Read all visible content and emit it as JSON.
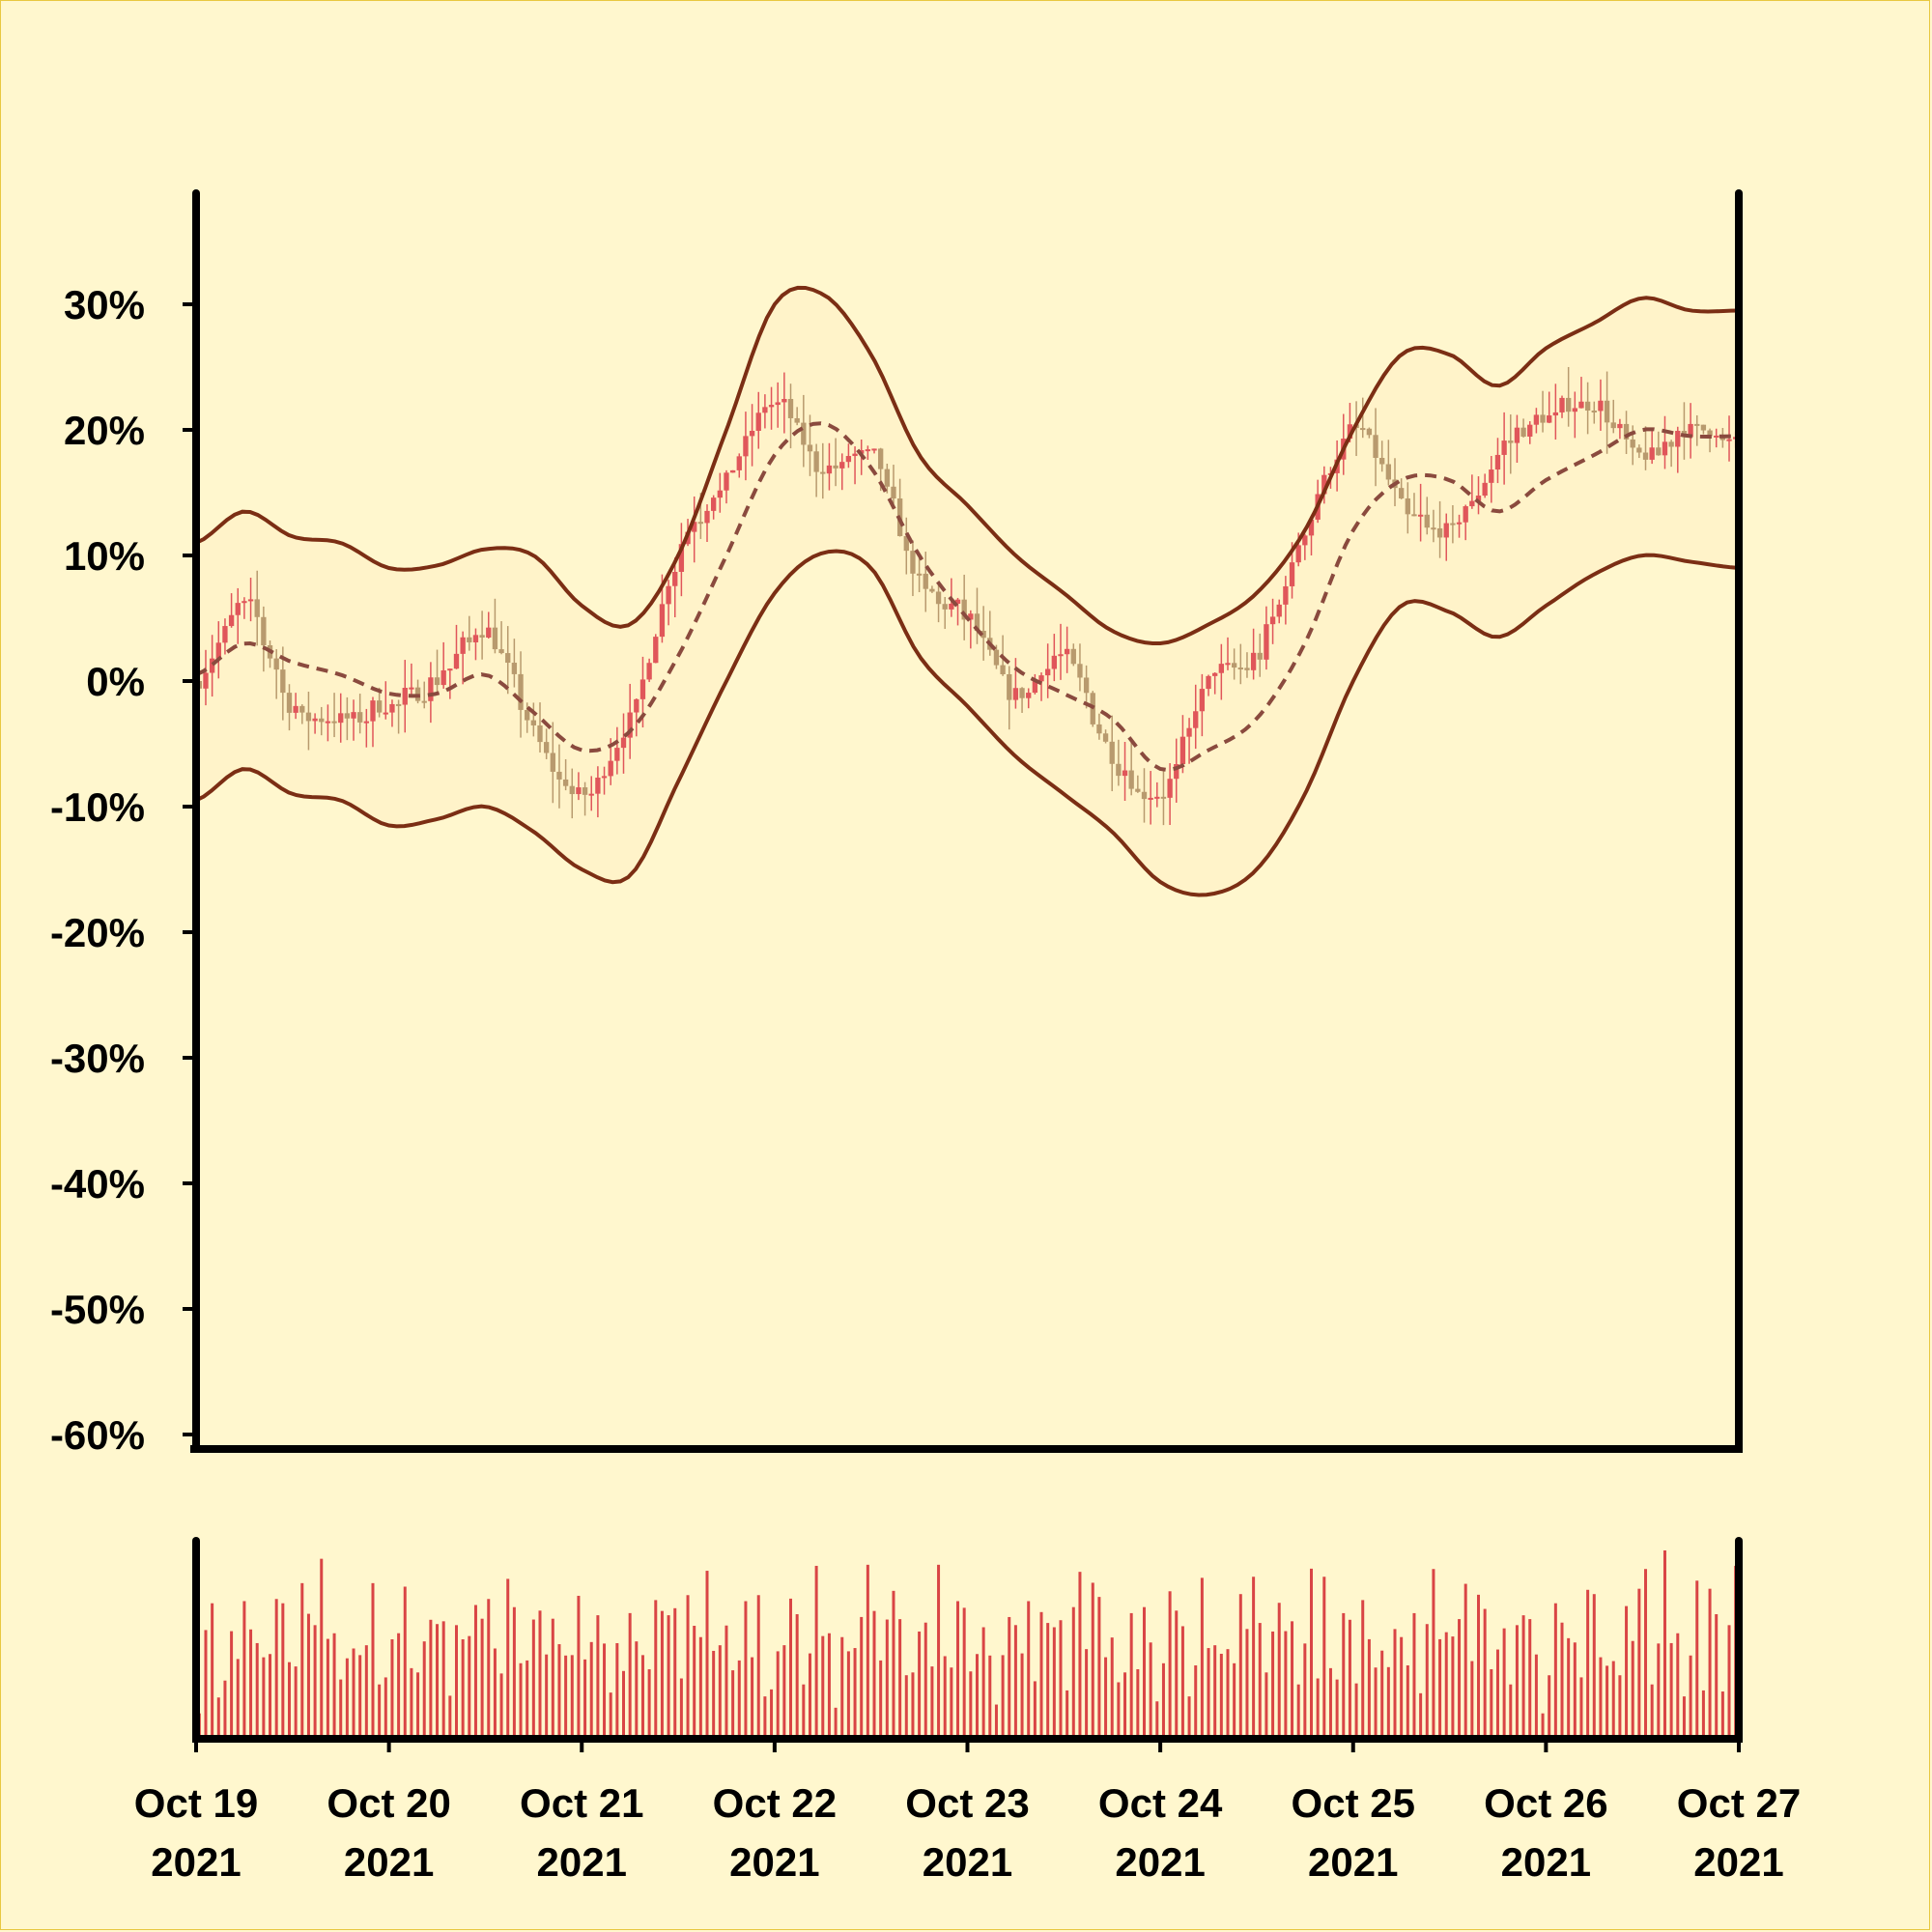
{
  "colors": {
    "background": "#fff7ce",
    "band_fill": "#fff3c9",
    "band_line": "#7b2e14",
    "mid_line": "#8a4a3e",
    "up_candle": "#e0565a",
    "down_candle": "#b89a6e",
    "volume": "#d94545",
    "axis": "#000000"
  },
  "chart_data": {
    "type": "candlestick",
    "title": "",
    "xlabel": "",
    "ylabel": "",
    "ylim": [
      -60,
      38
    ],
    "yticks": [
      30,
      20,
      10,
      0,
      -10,
      -20,
      -30,
      -40,
      -50,
      -60
    ],
    "ytick_labels": [
      "30%",
      "20%",
      "10%",
      "0%",
      "-10%",
      "-20%",
      "-30%",
      "-40%",
      "-50%",
      "-60%"
    ],
    "x_range": [
      "2021-10-19",
      "2021-10-27"
    ],
    "xtick_dates": [
      "2021-10-19",
      "2021-10-20",
      "2021-10-21",
      "2021-10-22",
      "2021-10-23",
      "2021-10-24",
      "2021-10-25",
      "2021-10-26",
      "2021-10-27"
    ],
    "xtick_labels": [
      [
        "Oct 19",
        "2021"
      ],
      [
        "Oct 20",
        "2021"
      ],
      [
        "Oct 21",
        "2021"
      ],
      [
        "Oct 22",
        "2021"
      ],
      [
        "Oct 23",
        "2021"
      ],
      [
        "Oct 24",
        "2021"
      ],
      [
        "Oct 25",
        "2021"
      ],
      [
        "Oct 26",
        "2021"
      ],
      [
        "Oct 27",
        "2021"
      ]
    ],
    "grid": false,
    "legend": "none",
    "close_series": {
      "name": "",
      "x": [
        "2021-10-19 00:00",
        "2021-10-19 06:00",
        "2021-10-19 12:00",
        "2021-10-19 18:00",
        "2021-10-20 00:00",
        "2021-10-20 06:00",
        "2021-10-20 12:00",
        "2021-10-20 18:00",
        "2021-10-21 00:00",
        "2021-10-21 06:00",
        "2021-10-21 12:00",
        "2021-10-21 18:00",
        "2021-10-22 00:00",
        "2021-10-22 06:00",
        "2021-10-22 12:00",
        "2021-10-22 18:00",
        "2021-10-23 00:00",
        "2021-10-23 06:00",
        "2021-10-23 12:00",
        "2021-10-23 18:00",
        "2021-10-24 00:00",
        "2021-10-24 06:00",
        "2021-10-24 12:00",
        "2021-10-24 18:00",
        "2021-10-25 00:00",
        "2021-10-25 06:00",
        "2021-10-25 12:00",
        "2021-10-25 18:00",
        "2021-10-26 00:00",
        "2021-10-26 06:00",
        "2021-10-26 12:00",
        "2021-10-26 18:00",
        "2021-10-27 00:00"
      ],
      "values": [
        0,
        6,
        -2,
        -3,
        -2,
        0,
        4,
        -4,
        -9,
        -3,
        10,
        16,
        22,
        17,
        18,
        8,
        5,
        -1,
        2,
        -6,
        -9,
        0,
        2,
        12,
        20,
        14,
        12,
        18,
        21,
        22,
        18,
        20,
        19
      ]
    },
    "band_upper": {
      "x": [
        "2021-10-19 00:00",
        "2021-10-19 06:00",
        "2021-10-19 12:00",
        "2021-10-19 18:00",
        "2021-10-20 00:00",
        "2021-10-20 06:00",
        "2021-10-20 12:00",
        "2021-10-20 18:00",
        "2021-10-21 00:00",
        "2021-10-21 06:00",
        "2021-10-21 12:00",
        "2021-10-21 18:00",
        "2021-10-22 00:00",
        "2021-10-22 06:00",
        "2021-10-22 12:00",
        "2021-10-22 18:00",
        "2021-10-23 00:00",
        "2021-10-23 06:00",
        "2021-10-23 12:00",
        "2021-10-23 18:00",
        "2021-10-24 00:00",
        "2021-10-24 06:00",
        "2021-10-24 12:00",
        "2021-10-24 18:00",
        "2021-10-25 00:00",
        "2021-10-25 06:00",
        "2021-10-25 12:00",
        "2021-10-25 18:00",
        "2021-10-26 00:00",
        "2021-10-26 06:00",
        "2021-10-26 12:00",
        "2021-10-26 18:00",
        "2021-10-27 00:00"
      ],
      "values": [
        11,
        13.5,
        11.5,
        11,
        9,
        9.2,
        10.5,
        10,
        6,
        4.5,
        10,
        20,
        30,
        30.8,
        26,
        18,
        14,
        10,
        7,
        4,
        3,
        4.5,
        7,
        12,
        20,
        26,
        26,
        23.5,
        26.5,
        28.5,
        30.5,
        29.5,
        29.5
      ]
    },
    "band_middle": {
      "x": [
        "2021-10-19 00:00",
        "2021-10-19 06:00",
        "2021-10-19 12:00",
        "2021-10-19 18:00",
        "2021-10-20 00:00",
        "2021-10-20 06:00",
        "2021-10-20 12:00",
        "2021-10-20 18:00",
        "2021-10-21 00:00",
        "2021-10-21 06:00",
        "2021-10-21 12:00",
        "2021-10-21 18:00",
        "2021-10-22 00:00",
        "2021-10-22 06:00",
        "2021-10-22 12:00",
        "2021-10-22 18:00",
        "2021-10-23 00:00",
        "2021-10-23 06:00",
        "2021-10-23 12:00",
        "2021-10-23 18:00",
        "2021-10-24 00:00",
        "2021-10-24 06:00",
        "2021-10-24 12:00",
        "2021-10-24 18:00",
        "2021-10-25 00:00",
        "2021-10-25 06:00",
        "2021-10-25 12:00",
        "2021-10-25 18:00",
        "2021-10-26 00:00",
        "2021-10-26 06:00",
        "2021-10-26 12:00",
        "2021-10-26 18:00",
        "2021-10-27 00:00"
      ],
      "values": [
        0.5,
        3,
        1.5,
        0.5,
        -1,
        -1,
        0.5,
        -2.5,
        -5.5,
        -4,
        2,
        10,
        18,
        20.5,
        17,
        10,
        5,
        1,
        -1,
        -3,
        -7,
        -5.5,
        -3,
        3,
        12,
        16,
        16,
        13.5,
        16,
        18,
        20,
        19.5,
        19.5
      ]
    },
    "band_lower": {
      "x": [
        "2021-10-19 00:00",
        "2021-10-19 06:00",
        "2021-10-19 12:00",
        "2021-10-19 18:00",
        "2021-10-20 00:00",
        "2021-10-20 06:00",
        "2021-10-20 12:00",
        "2021-10-20 18:00",
        "2021-10-21 00:00",
        "2021-10-21 06:00",
        "2021-10-21 12:00",
        "2021-10-21 18:00",
        "2021-10-22 00:00",
        "2021-10-22 06:00",
        "2021-10-22 12:00",
        "2021-10-22 18:00",
        "2021-10-23 00:00",
        "2021-10-23 06:00",
        "2021-10-23 12:00",
        "2021-10-23 18:00",
        "2021-10-24 00:00",
        "2021-10-24 06:00",
        "2021-10-24 12:00",
        "2021-10-24 18:00",
        "2021-10-25 00:00",
        "2021-10-25 06:00",
        "2021-10-25 12:00",
        "2021-10-25 18:00",
        "2021-10-26 00:00",
        "2021-10-26 06:00",
        "2021-10-26 12:00",
        "2021-10-26 18:00",
        "2021-10-27 00:00"
      ],
      "values": [
        -9.5,
        -7,
        -9,
        -9.5,
        -11.5,
        -11,
        -10,
        -12,
        -15,
        -15.5,
        -8,
        0,
        7,
        10.2,
        9,
        2,
        -2,
        -6,
        -9,
        -12,
        -16,
        -17,
        -15,
        -9,
        0,
        6,
        5.5,
        3.5,
        6,
        8.5,
        10,
        9.5,
        9
      ]
    },
    "candles": {
      "count": 240,
      "wick_range": 2.5
    },
    "volume": {
      "bar_count": 240,
      "relative_values": [
        0.18,
        0.6,
        0.62,
        0.25,
        0.2,
        0.38,
        0.48,
        0.72,
        0.35,
        0.55,
        0.28,
        0.6,
        0.82,
        0.62,
        0.5,
        0.3,
        0.72,
        0.8,
        0.55,
        0.85,
        0.58,
        0.45,
        0.42,
        0.4,
        0.3,
        0.55,
        0.45,
        0.72,
        0.3,
        0.18,
        0.28,
        0.62,
        0.78,
        0.5,
        0.3,
        0.35,
        0.8,
        0.6,
        0.45,
        0.22,
        0.55,
        0.28,
        0.6,
        0.65,
        0.85,
        0.82,
        0.3,
        0.42,
        0.92,
        0.55,
        0.45,
        0.3,
        0.42,
        0.78,
        0.3,
        0.85,
        0.5,
        0.25,
        0.55,
        0.8
      ]
    }
  }
}
